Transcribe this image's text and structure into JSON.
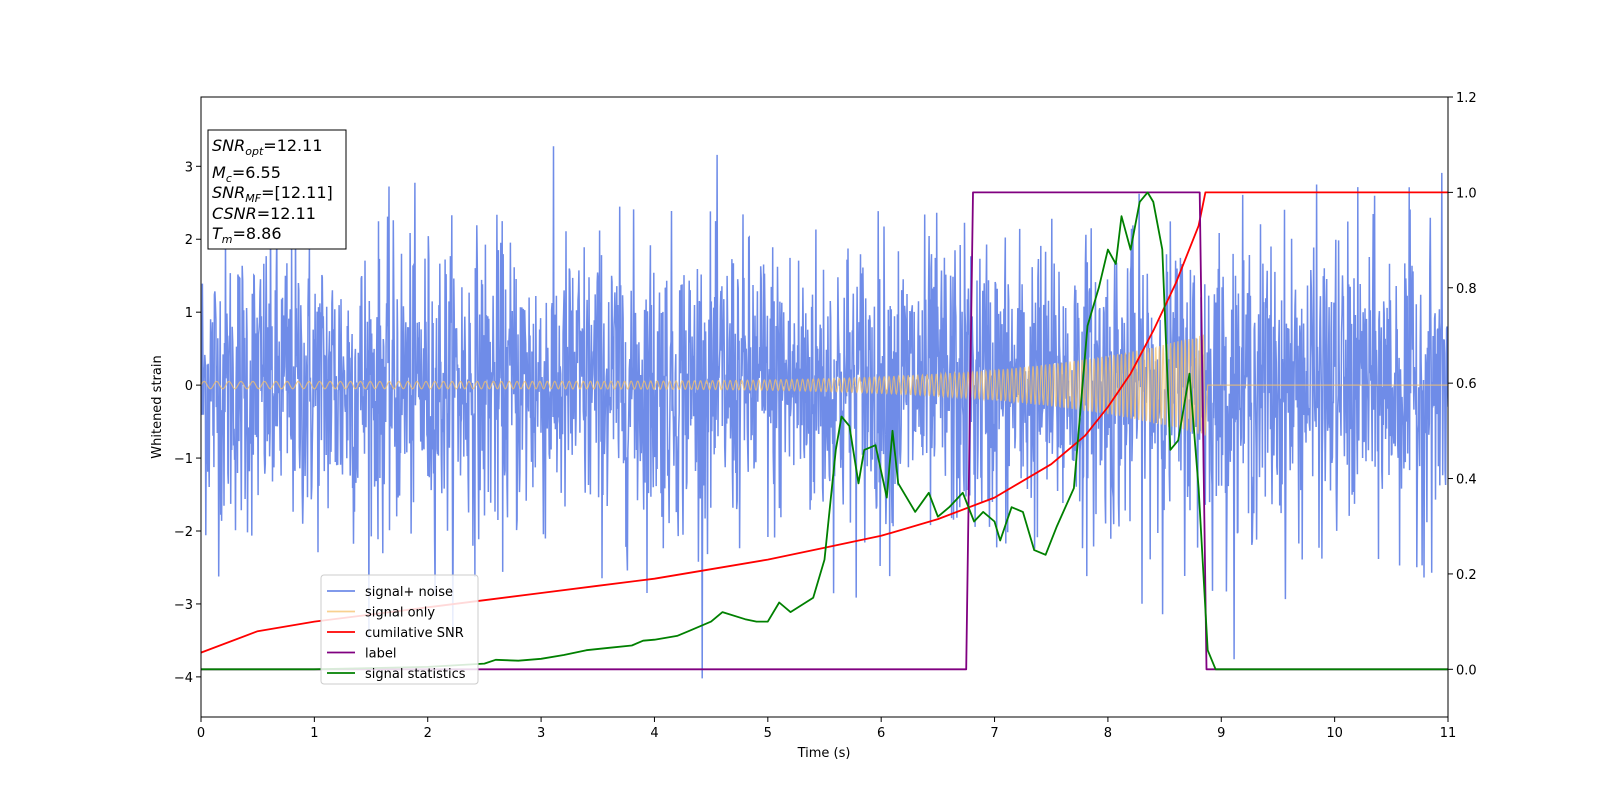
{
  "chart_data": {
    "type": "line",
    "xlabel": "Time (s)",
    "ylabel": "Whitened strain",
    "xlim": [
      0,
      11
    ],
    "ylim": [
      -4.55,
      3.95
    ],
    "y2lim": [
      -0.1,
      1.2
    ],
    "xticks": [
      0,
      1,
      2,
      3,
      4,
      5,
      6,
      7,
      8,
      9,
      10,
      11
    ],
    "yticks": [
      -4,
      -3,
      -2,
      -1,
      0,
      1,
      2,
      3
    ],
    "y2ticks": [
      "0.0",
      "0.2",
      "0.4",
      "0.6",
      "0.8",
      "1.0",
      "1.2"
    ],
    "grid": false,
    "legend_position": "lower-left",
    "info_box": {
      "snr_opt": {
        "base": "SNR",
        "sub": "opt",
        "value": "=12.11"
      },
      "mc": {
        "base": "M",
        "sub": "c",
        "value": "=6.55"
      },
      "snr_mf": {
        "base": "SNR",
        "sub": "MF",
        "value": "=[12.11]"
      },
      "csnr": {
        "base": "CSNR",
        "value": "=12.11"
      },
      "tm": {
        "base": "T",
        "sub": "m",
        "value": "=8.86"
      }
    },
    "series": [
      {
        "name": "signal+ noise",
        "color": "#6f8ce8",
        "axis": "left",
        "kind": "noise",
        "std": 1.0,
        "range": [
          -4.2,
          3.55
        ],
        "x_range": [
          0,
          11
        ]
      },
      {
        "name": "signal only",
        "color": "#f5c26b",
        "axis": "left",
        "kind": "chirp",
        "x_range": [
          0,
          8.86
        ],
        "envelope_start": 0.05,
        "envelope_end": 0.7
      },
      {
        "name": "cumilative SNR",
        "color": "#ff0000",
        "axis": "right",
        "x": [
          0,
          0.5,
          1,
          1.5,
          2,
          2.5,
          3,
          3.5,
          4,
          4.5,
          5,
          5.5,
          6,
          6.5,
          7,
          7.5,
          7.8,
          8,
          8.2,
          8.4,
          8.6,
          8.8,
          8.86,
          9,
          10,
          11
        ],
        "y": [
          0.035,
          0.08,
          0.1,
          0.115,
          0.13,
          0.145,
          0.16,
          0.175,
          0.19,
          0.21,
          0.23,
          0.255,
          0.28,
          0.315,
          0.36,
          0.43,
          0.49,
          0.55,
          0.62,
          0.71,
          0.81,
          0.93,
          1.0,
          1.0,
          1.0,
          1.0
        ]
      },
      {
        "name": "label",
        "color": "#800080",
        "axis": "right",
        "x": [
          0,
          6.75,
          6.81,
          8.81,
          8.87,
          11
        ],
        "y": [
          0,
          0,
          1,
          1,
          0,
          0
        ]
      },
      {
        "name": "signal statistics",
        "color": "#008000",
        "axis": "right",
        "x": [
          0,
          1,
          2,
          2.5,
          2.6,
          2.8,
          3.0,
          3.2,
          3.4,
          3.6,
          3.8,
          3.9,
          4.0,
          4.2,
          4.3,
          4.5,
          4.6,
          4.8,
          4.9,
          5.0,
          5.1,
          5.2,
          5.4,
          5.5,
          5.6,
          5.65,
          5.72,
          5.8,
          5.85,
          5.95,
          6.05,
          6.1,
          6.15,
          6.3,
          6.42,
          6.5,
          6.6,
          6.72,
          6.82,
          6.9,
          7.0,
          7.05,
          7.15,
          7.25,
          7.35,
          7.45,
          7.55,
          7.7,
          7.82,
          7.92,
          8.0,
          8.07,
          8.12,
          8.2,
          8.28,
          8.35,
          8.4,
          8.48,
          8.55,
          8.62,
          8.72,
          8.8,
          8.88,
          8.95,
          9.05,
          11
        ],
        "y": [
          0,
          0.0,
          0.005,
          0.012,
          0.02,
          0.018,
          0.022,
          0.03,
          0.04,
          0.045,
          0.05,
          0.06,
          0.062,
          0.07,
          0.08,
          0.1,
          0.12,
          0.105,
          0.1,
          0.1,
          0.14,
          0.12,
          0.15,
          0.23,
          0.46,
          0.53,
          0.51,
          0.39,
          0.46,
          0.47,
          0.36,
          0.5,
          0.39,
          0.33,
          0.37,
          0.32,
          0.34,
          0.37,
          0.31,
          0.33,
          0.31,
          0.27,
          0.34,
          0.33,
          0.25,
          0.24,
          0.3,
          0.38,
          0.72,
          0.8,
          0.88,
          0.85,
          0.95,
          0.88,
          0.98,
          1.0,
          0.98,
          0.88,
          0.46,
          0.48,
          0.62,
          0.38,
          0.04,
          0.0,
          0.0,
          0.0
        ]
      }
    ]
  }
}
